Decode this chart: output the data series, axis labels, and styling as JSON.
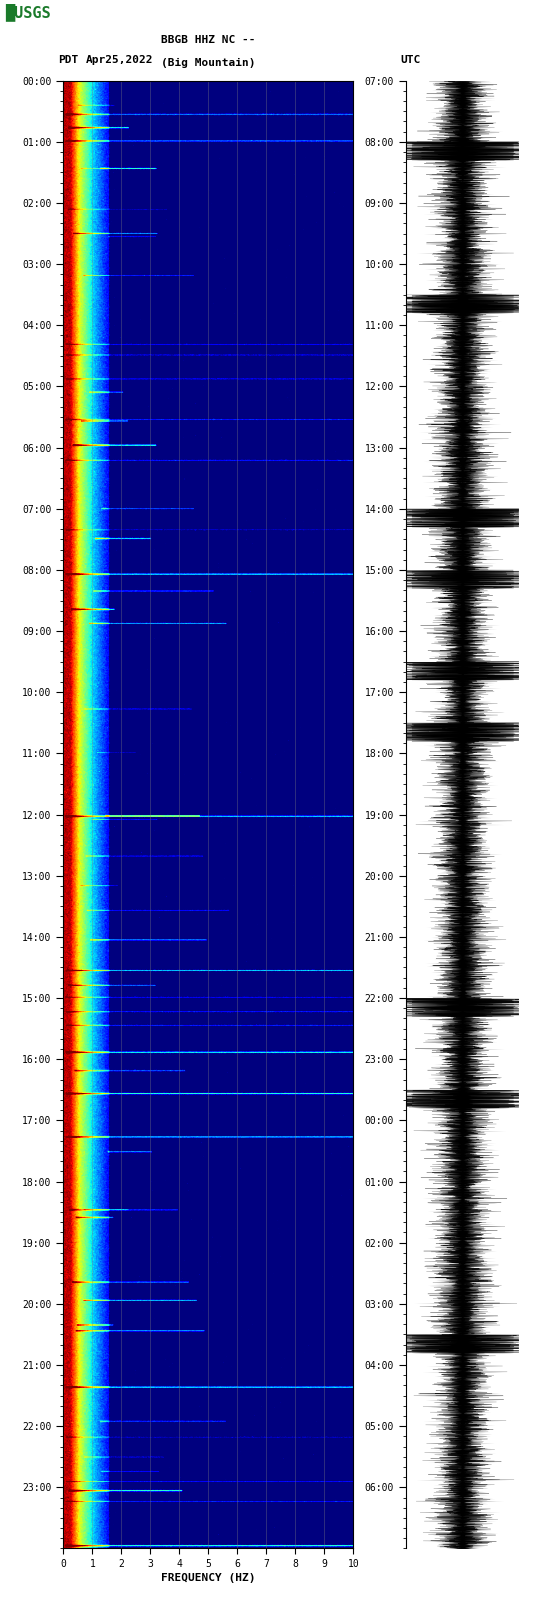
{
  "title_line1": "BBGB HHZ NC --",
  "title_line2": "(Big Mountain)",
  "date_label": "Apr25,2022",
  "left_tz": "PDT",
  "right_tz": "UTC",
  "xlabel": "FREQUENCY (HZ)",
  "xlim": [
    0,
    10
  ],
  "xticks": [
    0,
    1,
    2,
    3,
    4,
    5,
    6,
    7,
    8,
    9,
    10
  ],
  "left_yticks_hours": [
    0,
    1,
    2,
    3,
    4,
    5,
    6,
    7,
    8,
    9,
    10,
    11,
    12,
    13,
    14,
    15,
    16,
    17,
    18,
    19,
    20,
    21,
    22,
    23
  ],
  "right_yticks_hours": [
    7,
    8,
    9,
    10,
    11,
    12,
    13,
    14,
    15,
    16,
    17,
    18,
    19,
    20,
    21,
    22,
    23,
    0,
    1,
    2,
    3,
    4,
    5,
    6
  ],
  "fig_width": 5.52,
  "fig_height": 16.13,
  "dpi": 100,
  "colormap": "jet",
  "vmin": -3.5,
  "vmax": 2.0,
  "noise_base": -3.8,
  "noise_std": 0.25,
  "low_freq_boost_0": 5.5,
  "low_freq_boost_1": 3.8,
  "low_freq_boost_2": 2.2,
  "low_freq_boost_3": 0.9,
  "freq_thresh_0": 0.25,
  "freq_thresh_1": 0.55,
  "freq_thresh_2": 1.0,
  "freq_thresh_3": 1.6
}
